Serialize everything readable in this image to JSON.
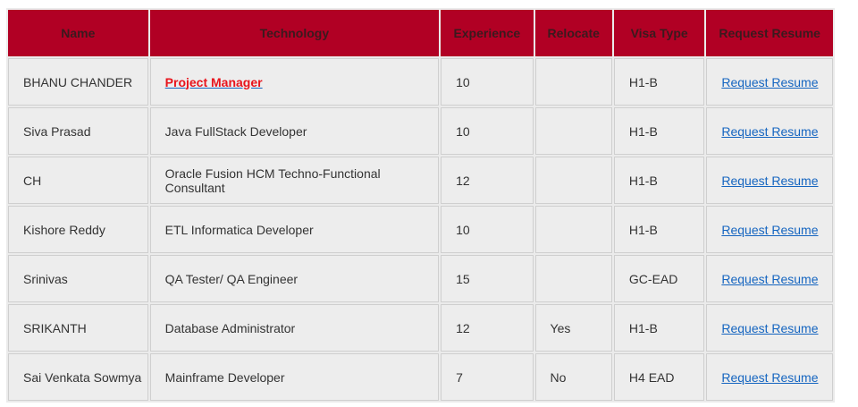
{
  "table": {
    "headers": {
      "name": "Name",
      "technology": "Technology",
      "experience": "Experience",
      "relocate": "Relocate",
      "visa_type": "Visa Type",
      "request_resume": "Request Resume"
    },
    "colors": {
      "header_bg": "#b10024",
      "header_text": "#3a1a1e",
      "cell_bg": "#ededed",
      "link": "#1565c0",
      "highlight_link": "#e8141c"
    },
    "rows": [
      {
        "name": "BHANU CHANDER",
        "technology": "Project Manager",
        "experience": "10",
        "relocate": "",
        "visa_type": "H1-B",
        "action": "Request Resume"
      },
      {
        "name": "Siva Prasad",
        "technology": "Java FullStack Developer",
        "experience": "10",
        "relocate": "",
        "visa_type": "H1-B",
        "action": "Request Resume"
      },
      {
        "name": "CH",
        "technology": "Oracle Fusion HCM Techno-Functional Consultant",
        "experience": "12",
        "relocate": "",
        "visa_type": "H1-B",
        "action": "Request Resume"
      },
      {
        "name": "Kishore Reddy",
        "technology": "ETL Informatica Developer",
        "experience": "10",
        "relocate": "",
        "visa_type": "H1-B",
        "action": "Request Resume"
      },
      {
        "name": "Srinivas",
        "technology": "QA Tester/ QA Engineer",
        "experience": "15",
        "relocate": "",
        "visa_type": "GC-EAD",
        "action": "Request Resume"
      },
      {
        "name": "SRIKANTH",
        "technology": "Database Administrator",
        "experience": "12",
        "relocate": "Yes",
        "visa_type": "H1-B",
        "action": "Request Resume"
      },
      {
        "name": "Sai Venkata Sowmya",
        "technology": "Mainframe Developer",
        "experience": "7",
        "relocate": "No",
        "visa_type": "H4 EAD",
        "action": "Request Resume"
      }
    ]
  }
}
